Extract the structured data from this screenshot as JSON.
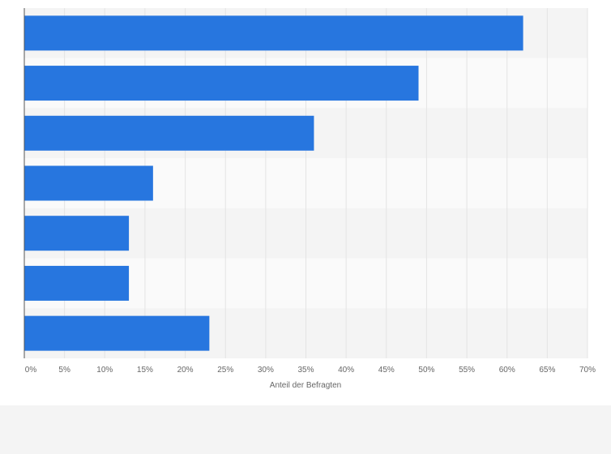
{
  "chart_data": {
    "type": "bar",
    "orientation": "horizontal",
    "categories": [
      "",
      "",
      "",
      "",
      "",
      "",
      ""
    ],
    "values": [
      62,
      49,
      36,
      16,
      13,
      13,
      23
    ],
    "xlabel": "Anteil der Befragten",
    "xlim": [
      0,
      70
    ],
    "ticks": [
      0,
      5,
      10,
      15,
      20,
      25,
      30,
      35,
      40,
      45,
      50,
      55,
      60,
      65,
      70
    ],
    "tick_labels": [
      "0%",
      "5%",
      "10%",
      "15%",
      "20%",
      "25%",
      "30%",
      "35%",
      "40%",
      "45%",
      "50%",
      "55%",
      "60%",
      "65%",
      "70%"
    ],
    "grid": true,
    "legend": "none"
  },
  "colors": {
    "bar": "#2776df",
    "background": "#f4f4f4",
    "band_light": "#fafafa",
    "band_dark": "#f4f4f4",
    "grid": "#e4e4e4",
    "axis": "#555555"
  }
}
